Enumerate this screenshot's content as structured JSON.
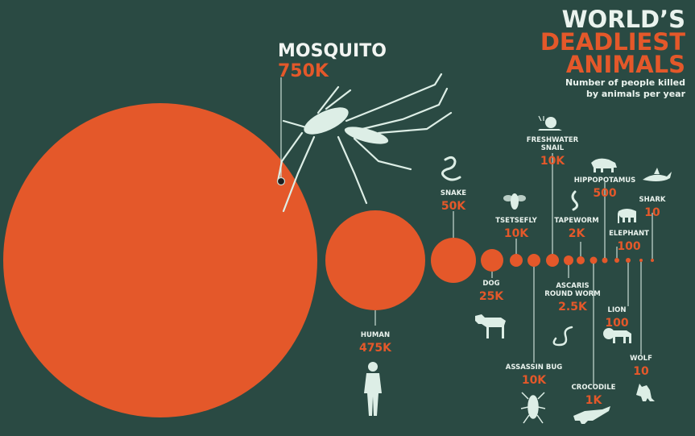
{
  "title": {
    "line1": "WORLD’S",
    "line2": "DEADLIEST",
    "line3": "ANIMALS"
  },
  "subtitle": {
    "line1": "Number of people killed",
    "line2": "by animals per year"
  },
  "colors": {
    "background": "#2a4a43",
    "bubble": "#e4582a",
    "text": "#eaf3ee",
    "icon": "#ddeee6"
  },
  "chart_data": {
    "type": "bubble",
    "title": "WORLD’S DEADLIEST ANIMALS",
    "subtitle": "Number of people killed by animals per year",
    "series": [
      {
        "name": "MOSQUITO",
        "value": 750000,
        "label": "750K",
        "icon": "mosquito-icon"
      },
      {
        "name": "HUMAN",
        "value": 475000,
        "label": "475K",
        "icon": "human-icon"
      },
      {
        "name": "SNAKE",
        "value": 50000,
        "label": "50K",
        "icon": "snake-icon"
      },
      {
        "name": "DOG",
        "value": 25000,
        "label": "25K",
        "icon": "dog-icon"
      },
      {
        "name": "TSETSEFLY",
        "value": 10000,
        "label": "10K",
        "icon": "tsetse-fly-icon"
      },
      {
        "name": "ASSASSIN BUG",
        "value": 10000,
        "label": "10K",
        "icon": "assassin-bug-icon"
      },
      {
        "name": "FRESHWATER SNAIL",
        "value": 10000,
        "label": "10K",
        "icon": "snail-icon"
      },
      {
        "name": "ASCARIS ROUND WORM",
        "value": 2500,
        "label": "2.5K",
        "icon": "round-worm-icon"
      },
      {
        "name": "TAPEWORM",
        "value": 2000,
        "label": "2K",
        "icon": "tapeworm-icon"
      },
      {
        "name": "CROCODILE",
        "value": 1000,
        "label": "1K",
        "icon": "crocodile-icon"
      },
      {
        "name": "HIPPOPOTAMUS",
        "value": 500,
        "label": "500",
        "icon": "hippo-icon"
      },
      {
        "name": "ELEPHANT",
        "value": 100,
        "label": "100",
        "icon": "elephant-icon"
      },
      {
        "name": "LION",
        "value": 100,
        "label": "100",
        "icon": "lion-icon"
      },
      {
        "name": "WOLF",
        "value": 10,
        "label": "10",
        "icon": "wolf-icon"
      },
      {
        "name": "SHARK",
        "value": 10,
        "label": "10",
        "icon": "shark-icon"
      }
    ]
  }
}
